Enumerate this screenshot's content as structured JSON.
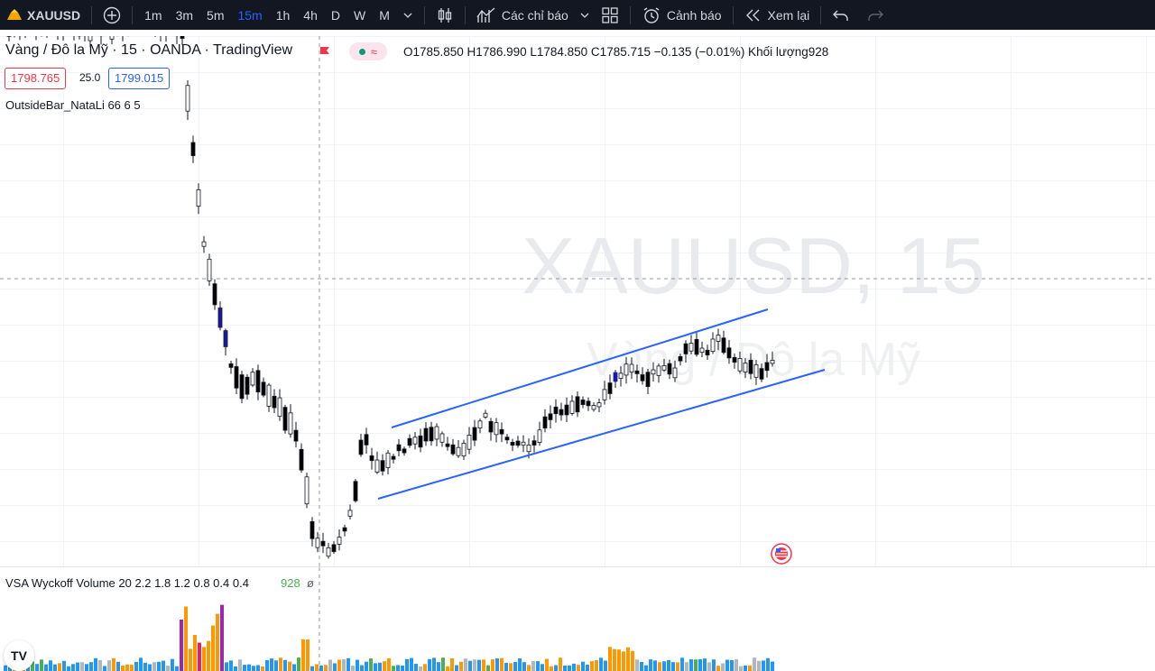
{
  "toolbar": {
    "symbol": "XAUUSD",
    "intervals": [
      "1m",
      "3m",
      "5m",
      "15m",
      "1h",
      "4h",
      "D",
      "W",
      "M"
    ],
    "active_interval": "15m",
    "indicators_label": "Các chỉ báo",
    "alerts_label": "Cảnh báo",
    "replay_label": "Xem lại"
  },
  "legend": {
    "title": "Vàng / Đô la Mỹ · 15 · OANDA · TradingView",
    "ohlc": "O1785.850 H1786.990 L1784.850 C1785.715 −0.135 (−0.01%) Khối lượng928",
    "sell_price": "1798.765",
    "spread": "25.0",
    "buy_price": "1799.015",
    "indicator": "OutsideBar_NataLi 66 6 5"
  },
  "watermark": {
    "symbol": "XAUUSD, 15",
    "description": "Vàng / Đô la Mỹ"
  },
  "volume_pane": {
    "legend": "VSA Wyckoff Volume 20 2.2 1.8 1.2 0.8 0.4 0.4",
    "value": "928",
    "extra": "ø"
  },
  "logo_text": "TV",
  "colors": {
    "toolbar_bg": "#131722",
    "active_interval": "#2962ff",
    "channel": "#2962ff",
    "candle_up": "#ffffff",
    "candle_down": "#000000",
    "outside_bar": "#1a1aa6",
    "vol_orange": "#ff9800",
    "vol_blue": "#2196f3",
    "vol_green": "#4caf50",
    "vol_purple": "#9c27b0",
    "vol_red": "#e91e63",
    "vol_grey": "#b2b5be"
  }
}
